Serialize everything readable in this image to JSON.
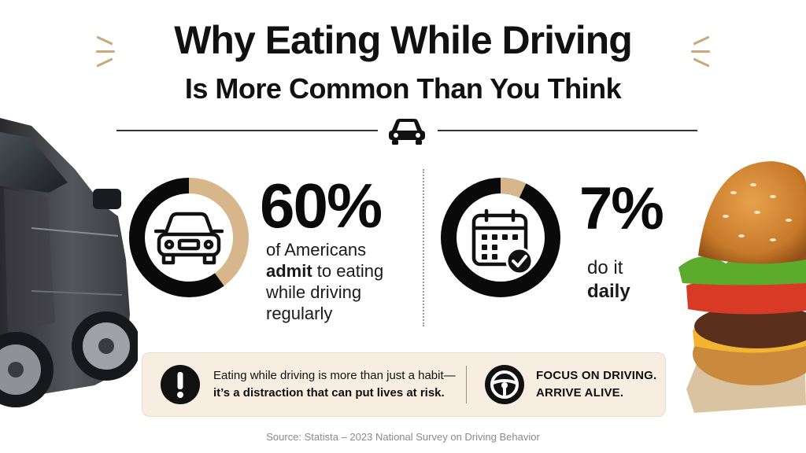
{
  "title": {
    "line1": "Why Eating While Driving",
    "line2": "Is More Common Than You Think"
  },
  "stats": [
    {
      "value": "60%",
      "fraction": 0.6,
      "icon": "car-icon",
      "line1": "of Americans",
      "line2_bold": "admit",
      "line2_rest": " to eating",
      "line3": "while driving",
      "line4": "regularly"
    },
    {
      "value": "7%",
      "fraction": 0.07,
      "icon": "calendar-check-icon",
      "line1": "do it",
      "line2_bold": "daily"
    }
  ],
  "banner": {
    "line1": "Eating while driving is more than just a habit—",
    "line2": "it’s a distraction that can put lives at risk.",
    "cta_line1": "FOCUS ON DRIVING.",
    "cta_line2": "ARRIVE ALIVE."
  },
  "source": "Source: Statista – 2023 National Survey on Driving Behavior",
  "colors": {
    "accent": "#d6b68a",
    "ring_dark": "#0a0a0a",
    "banner_bg": "#f7ede1"
  }
}
